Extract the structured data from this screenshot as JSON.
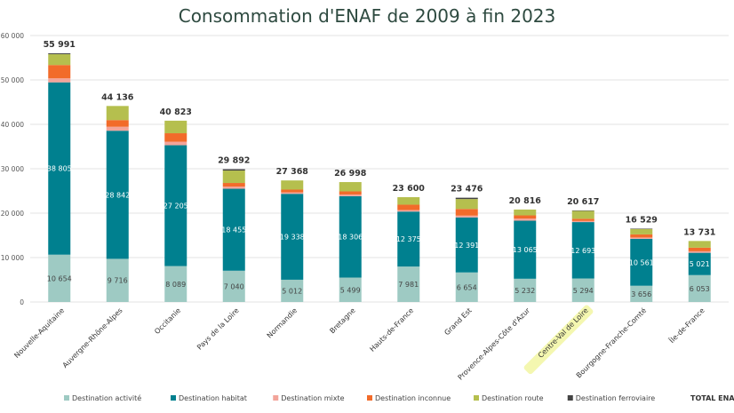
{
  "chart_data": {
    "type": "bar",
    "stacked": true,
    "title": "Consommation d'ENAF de 2009 à fin 2023",
    "ylim": [
      0,
      60000
    ],
    "y_ticks": [
      "0",
      "10 000",
      "20 000",
      "30 000",
      "40 000",
      "50 000",
      "60 000"
    ],
    "y_tick_values": [
      0,
      10000,
      20000,
      30000,
      40000,
      50000,
      60000
    ],
    "grid": true,
    "legend_position": "bottom",
    "highlighted_category": "Centre-Val de Loire",
    "categories": [
      "Nouvelle-Aquitaine",
      "Auvergne-Rhône-Alpes",
      "Occitanie",
      "Pays de la Loire",
      "Normandie",
      "Bretagne",
      "Hauts-de-France",
      "Grand Est",
      "Provence-Alpes-Côte d'Azur",
      "Centre-Val de Loire",
      "Bourgogne-Franche-Comté",
      "Île-de-France"
    ],
    "series": [
      {
        "name": "Destination activité",
        "color": "#9ecac3",
        "label_color": "#444444",
        "values": [
          10654,
          9716,
          8089,
          7040,
          5012,
          5499,
          7981,
          6654,
          5232,
          5294,
          3656,
          6053
        ],
        "value_labels": [
          "10 654",
          "9 716",
          "8 089",
          "7 040",
          "5 012",
          "5 499",
          "7 981",
          "6 654",
          "5 232",
          "5 294",
          "3 656",
          "6 053"
        ]
      },
      {
        "name": "Destination habitat",
        "color": "#00808f",
        "label_color": "#ffffff",
        "values": [
          38805,
          28842,
          27205,
          18455,
          19338,
          18306,
          12375,
          12391,
          13065,
          12693,
          10561,
          5021
        ],
        "value_labels": [
          "38 805",
          "28 842",
          "27 205",
          "18 455",
          "19 338",
          "18 306",
          "12 375",
          "12 391",
          "13 065",
          "12 693",
          "10 561",
          "5 021"
        ]
      },
      {
        "name": "Destination mixte",
        "color": "#f2a49a",
        "values": [
          900,
          900,
          800,
          500,
          350,
          400,
          350,
          400,
          500,
          250,
          300,
          350
        ]
      },
      {
        "name": "Destination inconnue",
        "color": "#f26b2a",
        "values": [
          3000,
          1500,
          1900,
          800,
          600,
          700,
          1200,
          1500,
          700,
          500,
          700,
          800
        ]
      },
      {
        "name": "Destination route",
        "color": "#b5bf4e",
        "values": [
          2432,
          3178,
          2829,
          2797,
          2068,
          2093,
          1694,
          2231,
          1319,
          1780,
          1212,
          1507
        ]
      },
      {
        "name": "Destination ferroviaire",
        "color": "#444444",
        "values": [
          200,
          0,
          0,
          300,
          0,
          0,
          0,
          300,
          0,
          100,
          100,
          0
        ]
      }
    ],
    "totals": [
      55991,
      44136,
      40823,
      29892,
      27368,
      26998,
      23600,
      23476,
      20816,
      20617,
      16529,
      13731
    ],
    "total_labels": [
      "55 991",
      "44 136",
      "40 823",
      "29 892",
      "27 368",
      "26 998",
      "23 600",
      "23 476",
      "20 816",
      "20 617",
      "16 529",
      "13 731"
    ],
    "total_legend_label": "TOTAL ENAF"
  }
}
